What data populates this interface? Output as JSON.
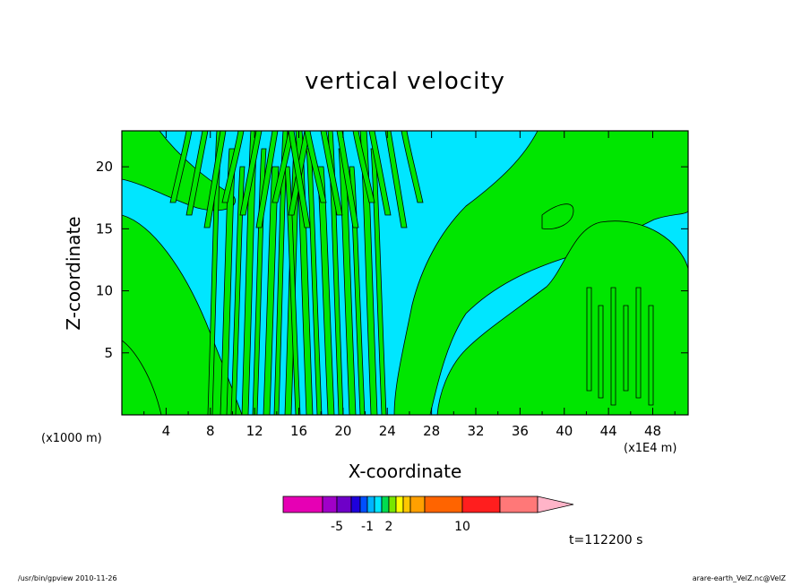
{
  "chart_data": {
    "type": "heatmap",
    "title": "vertical velocity",
    "xlabel": "X-coordinate",
    "ylabel": "Z-coordinate",
    "x_unit_label": "(x1E4 m)",
    "y_unit_label": "(x1000 m)",
    "x_ticks": [
      4,
      8,
      12,
      16,
      20,
      24,
      28,
      32,
      36,
      40,
      44,
      48
    ],
    "y_ticks": [
      5,
      10,
      15,
      20
    ],
    "xlim": [
      0,
      51.2
    ],
    "ylim": [
      0,
      22.9
    ],
    "colorbar": {
      "labels": [
        {
          "text": "-5",
          "value": -5
        },
        {
          "text": "-1",
          "value": -1
        },
        {
          "text": "2",
          "value": 2
        },
        {
          "text": "10",
          "value": 10
        }
      ],
      "colors": [
        "#e600b4",
        "#a000c8",
        "#6e00c8",
        "#1e00dc",
        "#0050ff",
        "#00b4ff",
        "#00e6ff",
        "#00dc50",
        "#78e600",
        "#ffff00",
        "#ffc800",
        "#ffa000",
        "#ff6400",
        "#ff1e1e",
        "#ff7878",
        "#ffb4c8"
      ]
    },
    "fill_colors": {
      "negative": "#00e6ff",
      "positive": "#00e600"
    },
    "time_label": "t=112200 s"
  },
  "footer": {
    "left": "/usr/bin/gpview   2010-11-26",
    "right": "arare-earth_VelZ.nc@VelZ"
  }
}
